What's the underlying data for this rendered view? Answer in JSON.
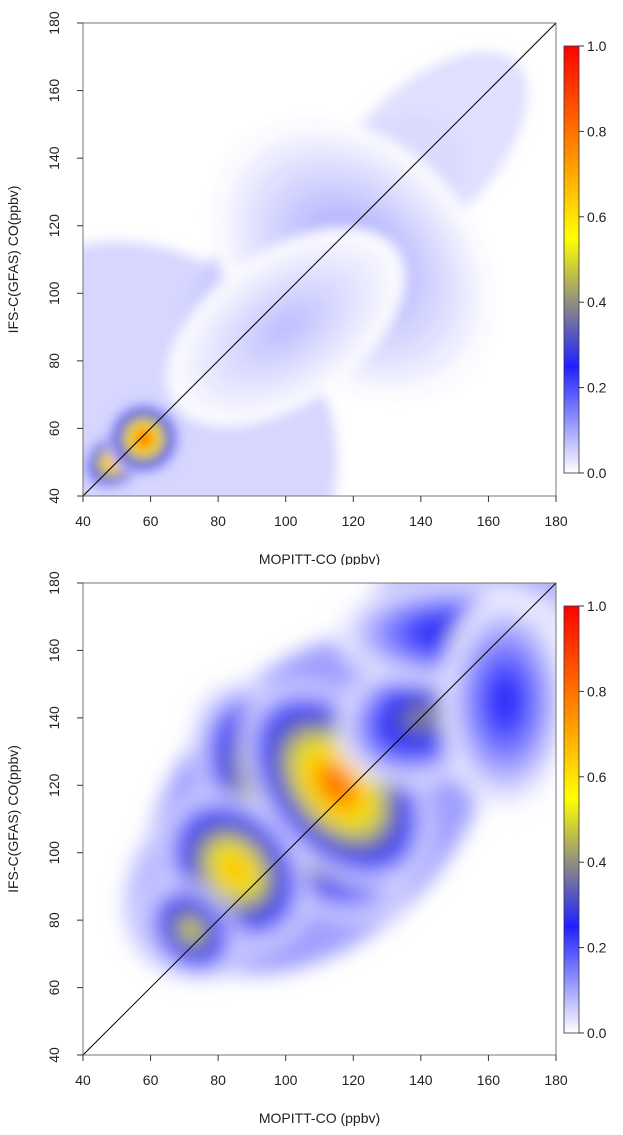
{
  "chart_data": [
    {
      "type": "heatmap",
      "xlabel": "MOPITT-CO (ppbv)",
      "ylabel": "IFS-C(GFAS) CO(ppbv)",
      "xlim": [
        40,
        180
      ],
      "ylim": [
        40,
        180
      ],
      "xticks": [
        "40",
        "60",
        "80",
        "100",
        "120",
        "140",
        "160",
        "180"
      ],
      "yticks": [
        "40",
        "60",
        "80",
        "100",
        "120",
        "140",
        "160",
        "180"
      ],
      "reference_line": "1:1",
      "colorbar": {
        "min": 0,
        "max": 1,
        "ticks": [
          "0.0",
          "0.2",
          "0.4",
          "0.6",
          "0.8",
          "1.0"
        ],
        "colors": [
          "#ffffff",
          "#2020ff",
          "#ffff00",
          "#ff0000"
        ]
      },
      "density_peaks": [
        {
          "x": 50,
          "y": 51,
          "density": 1.0
        },
        {
          "x": 58,
          "y": 57,
          "density": 1.0
        },
        {
          "x": 120,
          "y": 110,
          "density": 0.12
        },
        {
          "x": 100,
          "y": 90,
          "density": 0.08
        }
      ]
    },
    {
      "type": "heatmap",
      "xlabel": "MOPITT-CO (ppbv)",
      "ylabel": "IFS-C(GFAS) CO(ppbv)",
      "xlim": [
        40,
        180
      ],
      "ylim": [
        40,
        180
      ],
      "xticks": [
        "40",
        "60",
        "80",
        "100",
        "120",
        "140",
        "160",
        "180"
      ],
      "yticks": [
        "40",
        "60",
        "80",
        "100",
        "120",
        "140",
        "160",
        "180"
      ],
      "reference_line": "1:1",
      "colorbar": {
        "min": 0,
        "max": 1,
        "ticks": [
          "0.0",
          "0.2",
          "0.4",
          "0.6",
          "0.8",
          "1.0"
        ],
        "colors": [
          "#ffffff",
          "#2020ff",
          "#ffff00",
          "#ff0000"
        ]
      },
      "density_peaks": [
        {
          "x": 105,
          "y": 115,
          "density": 1.0
        },
        {
          "x": 115,
          "y": 120,
          "density": 0.95
        },
        {
          "x": 85,
          "y": 95,
          "density": 0.8
        },
        {
          "x": 72,
          "y": 77,
          "density": 0.6
        },
        {
          "x": 140,
          "y": 140,
          "density": 0.45
        },
        {
          "x": 150,
          "y": 165,
          "density": 0.35
        },
        {
          "x": 165,
          "y": 145,
          "density": 0.3
        }
      ]
    }
  ]
}
